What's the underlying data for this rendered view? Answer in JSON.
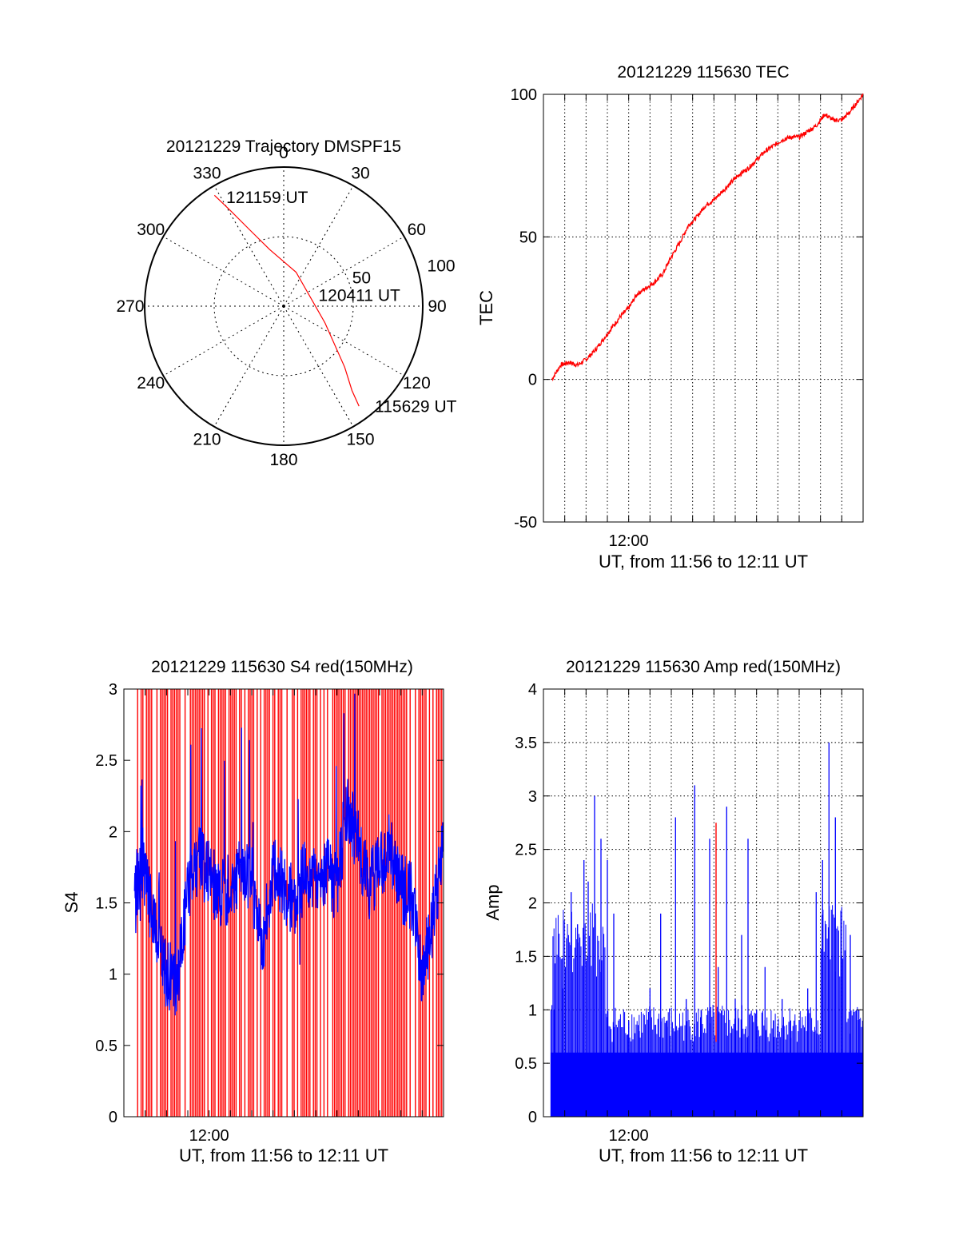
{
  "colors": {
    "red": "#ff0000",
    "blue": "#0000ff",
    "axis": "#000000"
  },
  "chart_data": [
    {
      "id": "trajectory",
      "type": "polar",
      "title": "20121229 Trajectory DMSPF15",
      "angle_labels": [
        "0",
        "30",
        "60",
        "90",
        "120",
        "150",
        "180",
        "210",
        "240",
        "270",
        "300",
        "330"
      ],
      "radius_labels": [
        "50",
        "100"
      ],
      "r_max": 100,
      "track": {
        "points": [
          {
            "az": 328,
            "r": 94
          },
          {
            "az": 331,
            "r": 78
          },
          {
            "az": 336,
            "r": 60
          },
          {
            "az": 346,
            "r": 42
          },
          {
            "az": 20,
            "r": 26
          },
          {
            "az": 112,
            "r": 32
          },
          {
            "az": 135,
            "r": 62
          },
          {
            "az": 141,
            "r": 78
          },
          {
            "az": 143,
            "r": 90
          }
        ],
        "labels": [
          {
            "text": "121159 UT",
            "az": 332,
            "r": 88
          },
          {
            "text": "120411 UT",
            "az": 74,
            "r": 26
          },
          {
            "text": "115629 UT",
            "az": 138,
            "r": 98
          }
        ]
      }
    },
    {
      "id": "tec",
      "type": "line",
      "title": "20121229 115630 TEC",
      "xlabel": "UT, from 11:56 to 12:11 UT",
      "ylabel": "TEC",
      "x_tick_labels": [
        {
          "minute": 4,
          "label": "12:00"
        }
      ],
      "xlim": [
        0,
        15
      ],
      "ylim": [
        -50,
        100
      ],
      "yticks": [
        -50,
        0,
        50,
        100
      ],
      "grid": true,
      "series": [
        {
          "color": "red",
          "x": [
            0.4,
            0.8,
            1.2,
            1.6,
            2.0,
            2.4,
            2.8,
            3.2,
            3.6,
            4.0,
            4.4,
            4.8,
            5.2,
            5.6,
            6.0,
            6.4,
            6.8,
            7.2,
            7.6,
            8.0,
            8.4,
            8.8,
            9.2,
            9.6,
            10.0,
            10.4,
            10.8,
            11.2,
            11.6,
            12.0,
            12.4,
            12.8,
            13.2,
            13.6,
            14.0,
            14.4,
            14.8,
            15.0
          ],
          "y": [
            0,
            5,
            6,
            5,
            7,
            10,
            14,
            18,
            22,
            25,
            30,
            32,
            34,
            37,
            43,
            48,
            54,
            57,
            61,
            63,
            66,
            69,
            72,
            74,
            77,
            80,
            82,
            84,
            85,
            85,
            87,
            89,
            93,
            91,
            91,
            94,
            98,
            100
          ]
        }
      ]
    },
    {
      "id": "s4",
      "type": "line",
      "title": "20121229 115630 S4 red(150MHz)",
      "xlabel": "UT, from 11:56 to 12:11 UT",
      "ylabel": "S4",
      "x_tick_labels": [
        {
          "minute": 4,
          "label": "12:00"
        }
      ],
      "xlim": [
        0,
        15
      ],
      "ylim": [
        0,
        3
      ],
      "yticks": [
        0,
        0.5,
        1,
        1.5,
        2,
        2.5,
        3
      ],
      "grid": false,
      "series": [
        {
          "color": "blue",
          "x": [
            0.5,
            1.0,
            1.5,
            2.0,
            2.5,
            3.0,
            3.5,
            4.0,
            4.5,
            5.0,
            5.5,
            6.0,
            6.5,
            7.0,
            7.5,
            8.0,
            8.5,
            9.0,
            9.5,
            10.0,
            10.5,
            11.0,
            11.5,
            12.0,
            12.5,
            13.0,
            13.5,
            14.0,
            14.5,
            15.0
          ],
          "y": [
            1.65,
            1.7,
            1.25,
            1.0,
            0.95,
            1.6,
            1.8,
            1.7,
            1.55,
            1.6,
            1.75,
            1.65,
            1.2,
            1.75,
            1.6,
            1.5,
            1.7,
            1.65,
            1.75,
            1.6,
            2.2,
            1.9,
            1.6,
            1.75,
            1.9,
            1.6,
            1.55,
            0.95,
            1.4,
            1.9
          ]
        }
      ]
    },
    {
      "id": "amp",
      "type": "bar",
      "title": "20121229 115630 Amp red(150MHz)",
      "xlabel": "UT, from 11:56 to 12:11 UT",
      "ylabel": "Amp",
      "x_tick_labels": [
        {
          "minute": 4,
          "label": "12:00"
        }
      ],
      "xlim": [
        0,
        15
      ],
      "ylim": [
        0,
        4
      ],
      "yticks": [
        0,
        0.5,
        1,
        1.5,
        2,
        2.5,
        3,
        3.5,
        4
      ],
      "grid": true,
      "series": [
        {
          "color": "blue",
          "x": [
            0.5,
            0.9,
            1.3,
            1.6,
            1.9,
            2.1,
            2.4,
            2.7,
            3.0,
            3.3,
            4.0,
            4.5,
            5.0,
            5.5,
            5.8,
            6.2,
            6.7,
            7.1,
            7.4,
            7.8,
            8.2,
            8.6,
            9.0,
            9.3,
            9.6,
            10.0,
            10.4,
            10.8,
            11.2,
            11.6,
            12.0,
            12.4,
            12.8,
            13.1,
            13.4,
            13.7,
            14.0,
            14.4,
            14.8
          ],
          "y": [
            1.0,
            1.2,
            2.1,
            1.8,
            2.4,
            2.2,
            3.0,
            2.6,
            2.4,
            1.9,
            0.9,
            0.8,
            1.2,
            1.9,
            0.9,
            2.8,
            1.1,
            3.1,
            1.0,
            2.6,
            1.4,
            2.9,
            1.1,
            1.7,
            2.6,
            1.0,
            1.4,
            0.9,
            1.1,
            0.9,
            0.9,
            1.2,
            2.1,
            2.4,
            3.5,
            2.8,
            1.5,
            1.7,
            1.0
          ]
        },
        {
          "color": "red",
          "x": [
            8.1
          ],
          "y": [
            2.75
          ]
        }
      ]
    }
  ]
}
